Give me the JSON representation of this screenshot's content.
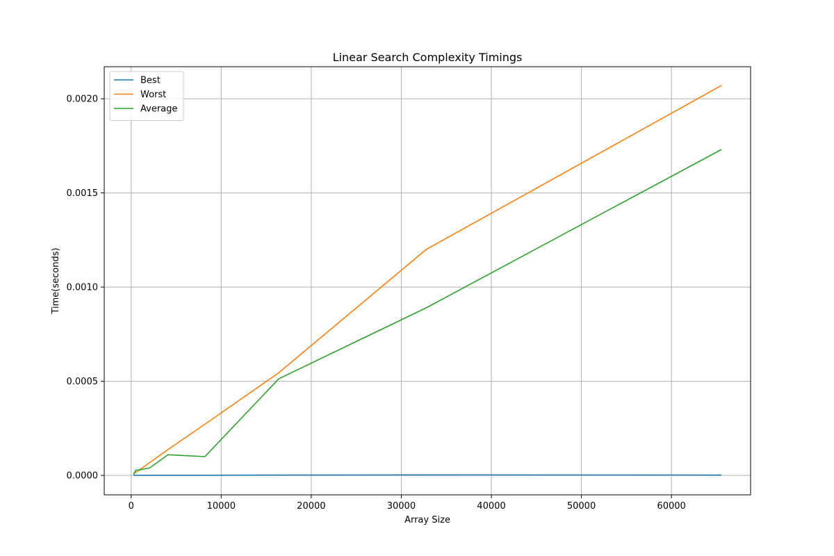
{
  "chart_data": {
    "type": "line",
    "title": "Linear Search Complexity Timings",
    "xlabel": "Array Size",
    "ylabel": "Time(seconds)",
    "x": [
      256,
      512,
      1024,
      2048,
      4096,
      8192,
      16384,
      32768,
      65536
    ],
    "series": [
      {
        "name": "Best",
        "color": "#1f77b4",
        "values": [
          1e-06,
          1e-06,
          1e-06,
          1e-06,
          1e-06,
          1e-06,
          2e-06,
          3e-06,
          2e-06
        ]
      },
      {
        "name": "Worst",
        "color": "#ff7f0e",
        "values": [
          8e-06,
          1.6e-05,
          3.3e-05,
          6.8e-05,
          0.000138,
          0.000272,
          0.000545,
          0.0012,
          0.00207
        ]
      },
      {
        "name": "Average",
        "color": "#2ca02c",
        "values": [
          5e-06,
          2.8e-05,
          3e-05,
          4e-05,
          0.00011,
          0.0001,
          0.000513,
          0.00089,
          0.00173
        ]
      }
    ],
    "xlim": [
      -2990,
      68790
    ],
    "ylim": [
      -0.000103,
      0.00217
    ],
    "xticks": [
      0,
      10000,
      20000,
      30000,
      40000,
      50000,
      60000
    ],
    "xtick_labels": [
      "0",
      "10000",
      "20000",
      "30000",
      "40000",
      "50000",
      "60000"
    ],
    "yticks": [
      0,
      0.0005,
      0.001,
      0.0015,
      0.002
    ],
    "ytick_labels": [
      "0.0000",
      "0.0005",
      "0.0010",
      "0.0015",
      "0.0020"
    ],
    "grid": true,
    "legend_position": "upper-left"
  }
}
